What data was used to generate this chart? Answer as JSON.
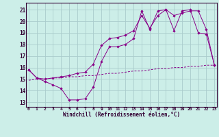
{
  "xlabel": "Windchill (Refroidissement éolien,°C)",
  "bg_color": "#cceee8",
  "grid_color": "#aacccc",
  "line_color": "#880088",
  "x_ticks": [
    0,
    1,
    2,
    3,
    4,
    5,
    6,
    7,
    8,
    9,
    10,
    11,
    12,
    13,
    14,
    15,
    16,
    17,
    18,
    19,
    20,
    21,
    22,
    23
  ],
  "y_ticks": [
    13,
    14,
    15,
    16,
    17,
    18,
    19,
    20,
    21
  ],
  "xlim": [
    -0.3,
    23.3
  ],
  "ylim": [
    12.6,
    21.6
  ],
  "line1_x": [
    0,
    1,
    2,
    3,
    4,
    5,
    6,
    7,
    8,
    9,
    10,
    11,
    12,
    13,
    14,
    15,
    16,
    17,
    18,
    19,
    20,
    21,
    22,
    23
  ],
  "line1_y": [
    15.8,
    15.1,
    14.8,
    14.5,
    14.2,
    13.2,
    13.2,
    13.3,
    14.3,
    16.5,
    17.8,
    17.8,
    18.0,
    18.5,
    20.9,
    19.3,
    20.9,
    21.0,
    19.2,
    20.9,
    21.0,
    19.0,
    18.9,
    16.2
  ],
  "line2_x": [
    0,
    1,
    2,
    3,
    4,
    5,
    6,
    7,
    8,
    9,
    10,
    11,
    12,
    13,
    14,
    15,
    16,
    17,
    18,
    19,
    20,
    21,
    22,
    23
  ],
  "line2_y": [
    14.9,
    15.0,
    15.0,
    15.1,
    15.1,
    15.2,
    15.2,
    15.3,
    15.3,
    15.4,
    15.5,
    15.5,
    15.6,
    15.7,
    15.7,
    15.8,
    15.9,
    15.9,
    16.0,
    16.0,
    16.1,
    16.1,
    16.2,
    16.2
  ],
  "line3_x": [
    0,
    1,
    2,
    3,
    4,
    5,
    6,
    7,
    8,
    9,
    10,
    11,
    12,
    13,
    14,
    15,
    16,
    17,
    18,
    19,
    20,
    21,
    22,
    23
  ],
  "line3_y": [
    15.8,
    15.1,
    15.0,
    15.1,
    15.2,
    15.3,
    15.5,
    15.6,
    16.3,
    17.9,
    18.5,
    18.6,
    18.8,
    19.2,
    20.5,
    19.4,
    20.5,
    21.0,
    20.5,
    20.7,
    20.9,
    20.9,
    19.3,
    16.2
  ]
}
